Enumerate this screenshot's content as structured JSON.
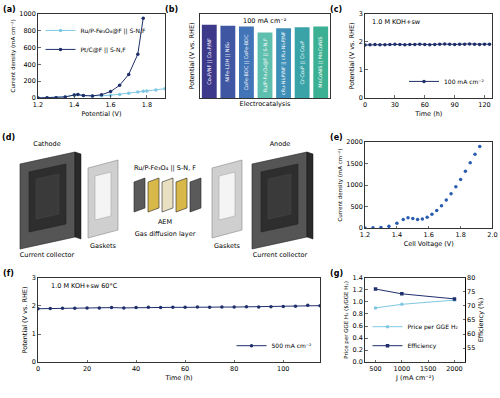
{
  "chart_data": [
    {
      "title": "(a)",
      "type": "line",
      "x_label": "Potential (V)",
      "y_label": "Current density (mA cm⁻²)",
      "x": [
        1.2,
        1.25,
        1.3,
        1.35,
        1.4,
        1.42,
        1.45,
        1.5,
        1.55,
        1.6,
        1.65,
        1.7,
        1.75,
        1.78,
        1.8,
        1.85,
        1.9
      ],
      "xlim": [
        1.2,
        1.9
      ],
      "xticks": [
        1.2,
        1.4,
        1.6,
        1.8
      ],
      "ylim": [
        0,
        1000
      ],
      "yticks": [
        0,
        200,
        400,
        600,
        800,
        1000
      ],
      "legend": "upper left",
      "series": [
        {
          "name": "Ru/P-Fe₃O₄@F || S-N,F",
          "color": "#7ec8e3",
          "marker": "circle",
          "values": [
            0,
            1,
            3,
            12,
            35,
            40,
            28,
            22,
            25,
            32,
            42,
            55,
            70,
            78,
            82,
            95,
            110
          ]
        },
        {
          "name": "Pt/C@F || S-N,F",
          "color": "#1f2f6b",
          "marker": "circle",
          "values": [
            0,
            1,
            3,
            12,
            35,
            40,
            28,
            24,
            38,
            75,
            150,
            280,
            520,
            950,
            null,
            null,
            null
          ]
        }
      ]
    },
    {
      "title": "(b)",
      "type": "bar",
      "x_label": "Electrocatalysis",
      "y_label": "Potential (V vs. RHE)",
      "categories": [
        "CoₓP/NF || CoₓP/NF",
        "NiFe-LDH || NiS₂",
        "CoFe-BDC || CoFe-BDC",
        "Ru/P-Fe₃O₄@F || S-N,F",
        "cRu-Ni₂P/NF || cRu-Ni₂P/NF",
        "Cr-Co₂P || Cr-Co₂P",
        "MnCoNiS || MnCoNiS"
      ],
      "values": [
        1.74,
        1.72,
        1.7,
        1.56,
        1.66,
        1.68,
        1.7
      ],
      "colors": [
        "#3d3a8c",
        "#3f56a3",
        "#4274b8",
        "#5fbfae",
        "#3f90b8",
        "#3aa3a8",
        "#3cb093"
      ],
      "ylim": [
        0,
        2.0
      ],
      "tick_labels": false,
      "annotations": [
        "100 mA cm⁻²"
      ]
    },
    {
      "title": "(c)",
      "type": "line",
      "x_label": "Time (h)",
      "y_label": "Potential (V vs. RHE)",
      "x": [
        0,
        5,
        10,
        15,
        20,
        25,
        30,
        35,
        40,
        45,
        50,
        55,
        60,
        65,
        70,
        75,
        80,
        85,
        90,
        95,
        100,
        105,
        110,
        115,
        120,
        125
      ],
      "xlim": [
        0,
        128
      ],
      "xticks": [
        0,
        30,
        60,
        90,
        120
      ],
      "ylim": [
        0,
        3
      ],
      "yticks": [
        0,
        1,
        2,
        3
      ],
      "legend": "lower right",
      "annotations": [
        "1.0 M KOH+sw"
      ],
      "series": [
        {
          "name": "100 mA cm⁻²",
          "color": "#1f2f6b",
          "marker": "circle",
          "values": [
            1.89,
            1.9,
            1.91,
            1.9,
            1.9,
            1.91,
            1.92,
            1.91,
            1.9,
            1.91,
            1.91,
            1.92,
            1.91,
            1.9,
            1.91,
            1.92,
            1.93,
            1.92,
            1.91,
            1.92,
            1.92,
            1.93,
            1.92,
            1.91,
            1.92,
            1.92
          ]
        }
      ]
    },
    {
      "title": "(e)",
      "type": "scatter",
      "x_label": "Cell Voltage (V)",
      "y_label": "Current density (mA cm⁻²)",
      "x": [
        1.2,
        1.25,
        1.3,
        1.35,
        1.4,
        1.44,
        1.47,
        1.5,
        1.53,
        1.56,
        1.59,
        1.62,
        1.65,
        1.68,
        1.71,
        1.74,
        1.77,
        1.8,
        1.83,
        1.86,
        1.89,
        1.92
      ],
      "values": [
        0,
        5,
        15,
        40,
        110,
        200,
        240,
        220,
        200,
        210,
        250,
        320,
        410,
        520,
        650,
        800,
        960,
        1130,
        1320,
        1520,
        1720,
        1900
      ],
      "color": "#2a5db0",
      "marker": "circle",
      "xlim": [
        1.2,
        2.0
      ],
      "xticks": [
        1.2,
        1.4,
        1.6,
        1.8,
        {
          "value": 2.0,
          "label": "2.0"
        }
      ],
      "ylim": [
        0,
        2000
      ],
      "yticks": [
        0,
        500,
        1000,
        1500,
        2000
      ]
    },
    {
      "title": "(f)",
      "type": "line",
      "x_label": "Time (h)",
      "y_label": "Potential (V vs. RHE)",
      "x": [
        0,
        5,
        10,
        15,
        20,
        25,
        30,
        35,
        40,
        45,
        50,
        55,
        60,
        65,
        70,
        75,
        80,
        85,
        90,
        95,
        100,
        105,
        110,
        115
      ],
      "xlim": [
        0,
        115
      ],
      "xticks": [
        0,
        20,
        40,
        60,
        80,
        100
      ],
      "ylim": [
        0,
        3
      ],
      "yticks": [
        0,
        1,
        2,
        3
      ],
      "legend": "lower right",
      "annotations": [
        "1.0 M KOH+sw 60°C"
      ],
      "series": [
        {
          "name": "500 mA cm⁻²",
          "color": "#1f2f6b",
          "marker": "circle",
          "values": [
            1.9,
            1.91,
            1.92,
            1.92,
            1.93,
            1.93,
            1.94,
            1.93,
            1.94,
            1.95,
            1.94,
            1.95,
            1.95,
            1.96,
            1.95,
            1.96,
            1.96,
            1.97,
            1.96,
            1.97,
            1.98,
            1.99,
            2.02,
            2.01
          ]
        }
      ]
    },
    {
      "title": "(g)",
      "type": "line",
      "x_label": "J (mA cm⁻²)",
      "y_label": "Price per GGE H₂ ($/GGE H₂)",
      "y2_label": "Efficiency (%)",
      "x": [
        500,
        1000,
        2000
      ],
      "xlim": [
        300,
        2200
      ],
      "xticks": [
        500,
        1000,
        1500,
        2000
      ],
      "ylim": [
        0,
        1.4
      ],
      "yticks": [
        {
          "value": 0,
          "label": "0.0"
        },
        0.2,
        0.4,
        0.6,
        0.8,
        {
          "value": 1,
          "label": "1.0"
        },
        1.2,
        1.4
      ],
      "y2lim": [
        50,
        80
      ],
      "y2ticks": [
        55,
        60,
        65,
        70,
        75,
        80
      ],
      "legend": "lower left",
      "series": [
        {
          "name": "Price per GGE H₂",
          "color": "#7ec8e3",
          "marker": "circle",
          "values": [
            0.9,
            0.96,
            1.03
          ]
        },
        {
          "name": "Efficiency",
          "color": "#1f2f6b",
          "marker": "square",
          "axis": "y2",
          "values": [
            76,
            74.3,
            72.5
          ]
        }
      ]
    }
  ],
  "diagram": {
    "panel": "(d)",
    "labels": {
      "cathode": "Cathode",
      "anode": "Anode",
      "catalysts": "Ru/P-Fe₃O₄ || S-N, F",
      "membrane": "AEM",
      "gdl": "Gas diffusion layer",
      "gaskets_left": "Gaskets",
      "gaskets_right": "Gaskets",
      "collector_left": "Current collector",
      "collector_right": "Current collector"
    }
  }
}
